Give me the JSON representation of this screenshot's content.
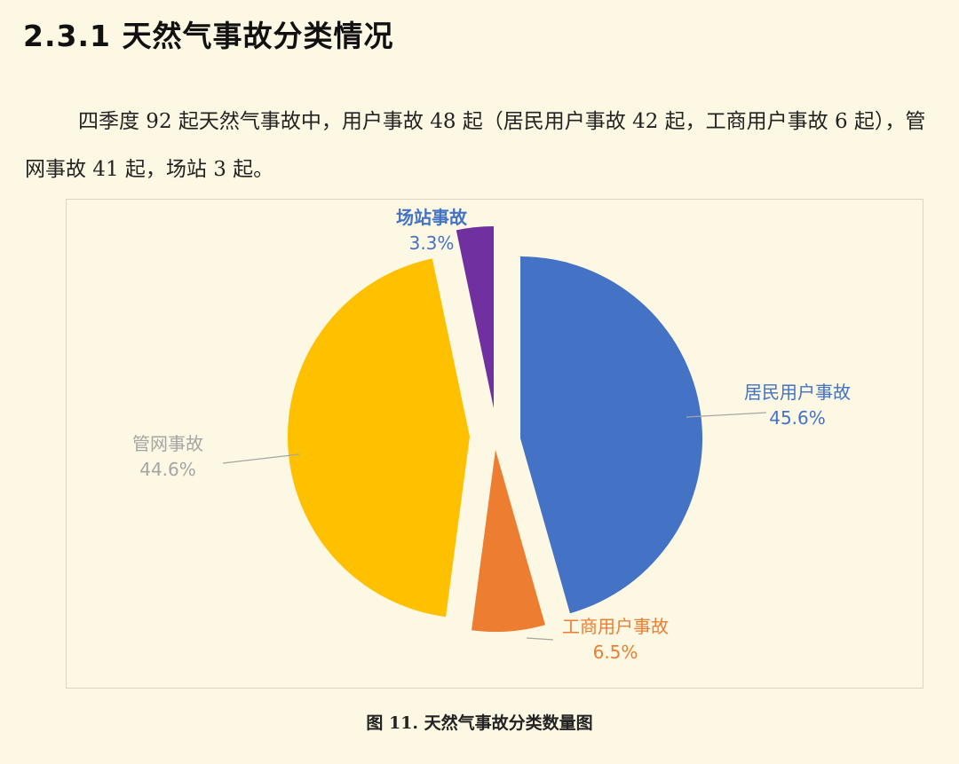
{
  "heading": "2.3.1 天然气事故分类情况",
  "paragraph": "四季度 92 起天然气事故中，用户事故 48 起（居民用户事故 42 起，工商用户事故 6 起），管网事故 41 起，场站 3 起。",
  "caption": "图 11. 天然气事故分类数量图",
  "chart_data": {
    "type": "pie",
    "title": "",
    "start_angle_deg": 0,
    "direction": "clockwise",
    "slices": [
      {
        "name": "居民用户事故",
        "value": 45.6,
        "label": "45.6%",
        "color": "#4472c4",
        "label_color": "#4472c4"
      },
      {
        "name": "工商用户事故",
        "value": 6.5,
        "label": "6.5%",
        "color": "#ed7d31",
        "label_color": "#ed7d31"
      },
      {
        "name": "管网事故",
        "value": 44.6,
        "label": "44.6%",
        "color": "#ffc000",
        "label_color": "#a5a5a5"
      },
      {
        "name": "场站事故",
        "value": 3.3,
        "label": "3.3%",
        "color": "#7030a0",
        "label_color": "#4472c4"
      }
    ],
    "exploded": true,
    "legend": "none"
  }
}
